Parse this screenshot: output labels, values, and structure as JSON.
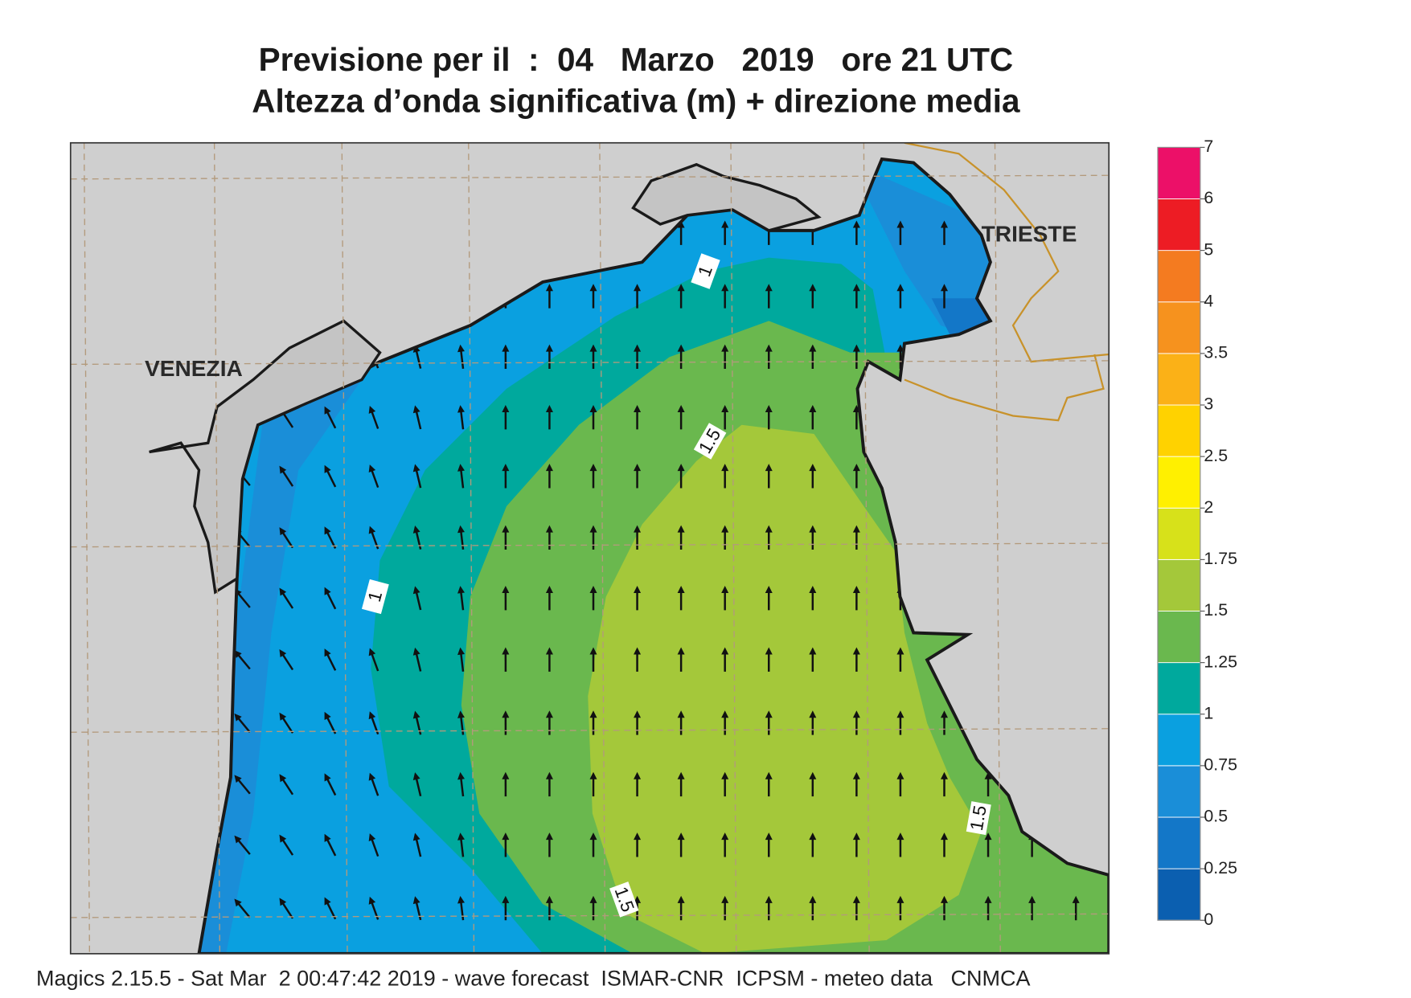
{
  "title": {
    "line1": "Previsione per il  :  04   Marzo   2019   ore 21 UTC",
    "line2": "Altezza d’onda significativa (m) + direzione media"
  },
  "map": {
    "places": [
      "VENEZIA",
      "TRIESTE"
    ],
    "contour_labels": [
      "1",
      "1.5",
      "1",
      "1.5",
      "1.5"
    ]
  },
  "legend": {
    "ticks": [
      0,
      0.25,
      0.5,
      0.75,
      1,
      1.25,
      1.5,
      1.75,
      2,
      2.5,
      3,
      3.5,
      4,
      5,
      6,
      7
    ],
    "colors": [
      "#0b5fb0",
      "#1377c8",
      "#1a8ed8",
      "#0aa0e0",
      "#00a99d",
      "#6ab84e",
      "#a4c83a",
      "#d7e11a",
      "#fff000",
      "#ffd200",
      "#fbb117",
      "#f6921e",
      "#f47b20",
      "#ed1c24",
      "#ec1068"
    ]
  },
  "footer": "Magics 2.15.5 - Sat Mar  2 00:47:42 2019 - wave forecast  ISMAR-CNR  ICPSM - meteo data   CNMCA"
}
